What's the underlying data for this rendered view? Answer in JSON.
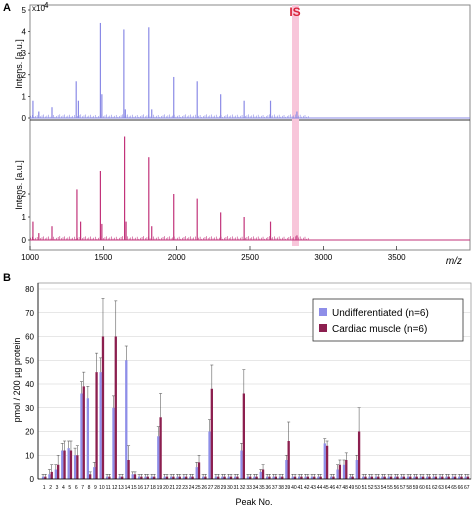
{
  "panel_a": {
    "label": "A",
    "ylabel": "Intens. [a.u.]",
    "exponent_label": "x10",
    "exponent_power": "4",
    "xlabel": "m/z",
    "is_label": "IS",
    "colors": {
      "top": "#8A8AE6",
      "bottom": "#C2337A",
      "is_band": "#F8C6DA",
      "is_text": "#D9233A"
    }
  },
  "panel_b": {
    "label": "B",
    "legend": [
      "Undifferentiated  (n=6)",
      "Cardiac muscle  (n=6)"
    ],
    "colors": {
      "undiff": "#8E8EE8",
      "cardiac": "#8C1F4F"
    }
  },
  "chart_data": [
    {
      "type": "line",
      "title": "",
      "xlabel": "m/z",
      "ylabel": "Intens. [a.u.]",
      "xlim": [
        1000,
        4000
      ],
      "ylim": [
        0,
        5
      ],
      "x_ticks": [
        1000,
        1500,
        2000,
        2500,
        3000,
        3500
      ],
      "series": [
        {
          "name": "",
          "peaks": [
            [
              1020,
              0.8
            ],
            [
              1060,
              0.3
            ],
            [
              1150,
              0.5
            ],
            [
              1315,
              1.7
            ],
            [
              1330,
              0.8
            ],
            [
              1480,
              4.4
            ],
            [
              1490,
              1.1
            ],
            [
              1640,
              4.1
            ],
            [
              1650,
              0.4
            ],
            [
              1810,
              4.2
            ],
            [
              1830,
              0.4
            ],
            [
              1980,
              1.9
            ],
            [
              2140,
              1.7
            ],
            [
              2300,
              1.1
            ],
            [
              2460,
              0.8
            ],
            [
              2640,
              0.8
            ],
            [
              2820,
              0.3
            ]
          ]
        },
        {
          "name": "",
          "peaks": [
            [
              1020,
              0.8
            ],
            [
              1060,
              0.3
            ],
            [
              1150,
              0.6
            ],
            [
              1320,
              2.2
            ],
            [
              1345,
              0.8
            ],
            [
              1480,
              3.0
            ],
            [
              1490,
              0.7
            ],
            [
              1645,
              4.5
            ],
            [
              1655,
              0.8
            ],
            [
              1810,
              3.6
            ],
            [
              1830,
              0.6
            ],
            [
              1980,
              2.0
            ],
            [
              2140,
              1.8
            ],
            [
              2300,
              1.2
            ],
            [
              2460,
              1.0
            ],
            [
              2640,
              0.8
            ],
            [
              2820,
              0.2
            ]
          ]
        }
      ],
      "ylim_bottom": [
        0,
        2
      ],
      "y_ticks_top": [
        0,
        1,
        2,
        3,
        4,
        5
      ],
      "y_ticks_bottom": [
        0,
        1,
        2
      ]
    },
    {
      "type": "bar",
      "xlabel": "Peak No.",
      "ylabel": "pmol / 200 µg protein",
      "ylim": [
        0,
        80
      ],
      "y_ticks": [
        0,
        10,
        20,
        30,
        40,
        50,
        60,
        70,
        80
      ],
      "legend_position": "top-right",
      "categories": [
        "1",
        "2",
        "3",
        "4",
        "5",
        "6",
        "7",
        "8",
        "9",
        "10",
        "11",
        "12",
        "13",
        "14",
        "15",
        "16",
        "17",
        "18",
        "19",
        "20",
        "21",
        "22",
        "23",
        "24",
        "25",
        "26",
        "27",
        "28",
        "29",
        "30",
        "31",
        "32",
        "33",
        "34",
        "35",
        "36",
        "37",
        "38",
        "39",
        "40",
        "41",
        "42",
        "43",
        "44",
        "45",
        "46",
        "47",
        "48",
        "49",
        "50",
        "51",
        "52",
        "53",
        "54",
        "55",
        "56",
        "57",
        "58",
        "59",
        "60",
        "61",
        "62",
        "63",
        "64",
        "65",
        "66",
        "67"
      ],
      "series": [
        {
          "name": "Undifferentiated  (n=6)",
          "values": [
            1,
            2,
            4,
            12,
            13,
            10,
            36,
            34,
            5,
            45,
            1,
            30,
            1,
            50,
            2,
            1,
            1,
            1,
            18,
            1,
            1,
            1,
            1,
            1,
            5,
            1,
            20,
            1,
            1,
            1,
            1,
            12,
            1,
            1,
            3,
            1,
            1,
            1,
            8,
            1,
            1,
            1,
            1,
            1,
            15,
            1,
            4,
            6,
            1,
            8,
            1,
            1,
            1,
            1,
            1,
            1,
            1,
            1,
            1,
            1,
            1,
            1,
            1,
            1,
            1,
            1,
            1
          ],
          "errors": [
            1,
            2,
            2,
            3,
            3,
            3,
            5,
            5,
            2,
            6,
            1,
            5,
            1,
            6,
            1,
            1,
            1,
            1,
            4,
            1,
            1,
            1,
            1,
            1,
            2,
            1,
            5,
            1,
            1,
            1,
            1,
            3,
            1,
            1,
            1,
            1,
            1,
            1,
            2,
            1,
            1,
            1,
            1,
            1,
            2,
            1,
            2,
            2,
            1,
            2,
            1,
            1,
            1,
            1,
            1,
            1,
            1,
            1,
            1,
            1,
            1,
            1,
            1,
            1,
            1,
            1,
            1
          ]
        },
        {
          "name": "Cardiac muscle  (n=6)",
          "values": [
            1,
            3,
            6,
            12,
            12,
            10,
            39,
            2,
            45,
            60,
            1,
            60,
            1,
            8,
            2,
            1,
            1,
            1,
            26,
            1,
            1,
            1,
            1,
            1,
            7,
            1,
            38,
            1,
            1,
            1,
            1,
            36,
            1,
            1,
            4,
            1,
            1,
            1,
            16,
            1,
            1,
            1,
            1,
            1,
            14,
            1,
            6,
            8,
            1,
            20,
            1,
            1,
            1,
            1,
            1,
            1,
            1,
            1,
            1,
            1,
            1,
            1,
            1,
            1,
            1,
            1,
            1
          ],
          "errors": [
            1,
            3,
            4,
            4,
            4,
            4,
            6,
            1,
            8,
            16,
            1,
            15,
            1,
            6,
            1,
            1,
            1,
            1,
            10,
            1,
            1,
            1,
            1,
            1,
            3,
            1,
            10,
            1,
            1,
            1,
            1,
            10,
            1,
            1,
            2,
            1,
            1,
            1,
            8,
            1,
            1,
            1,
            1,
            1,
            2,
            1,
            2,
            3,
            1,
            10,
            1,
            1,
            1,
            1,
            1,
            1,
            1,
            1,
            1,
            1,
            1,
            1,
            1,
            1,
            1,
            1,
            1
          ]
        }
      ]
    }
  ]
}
